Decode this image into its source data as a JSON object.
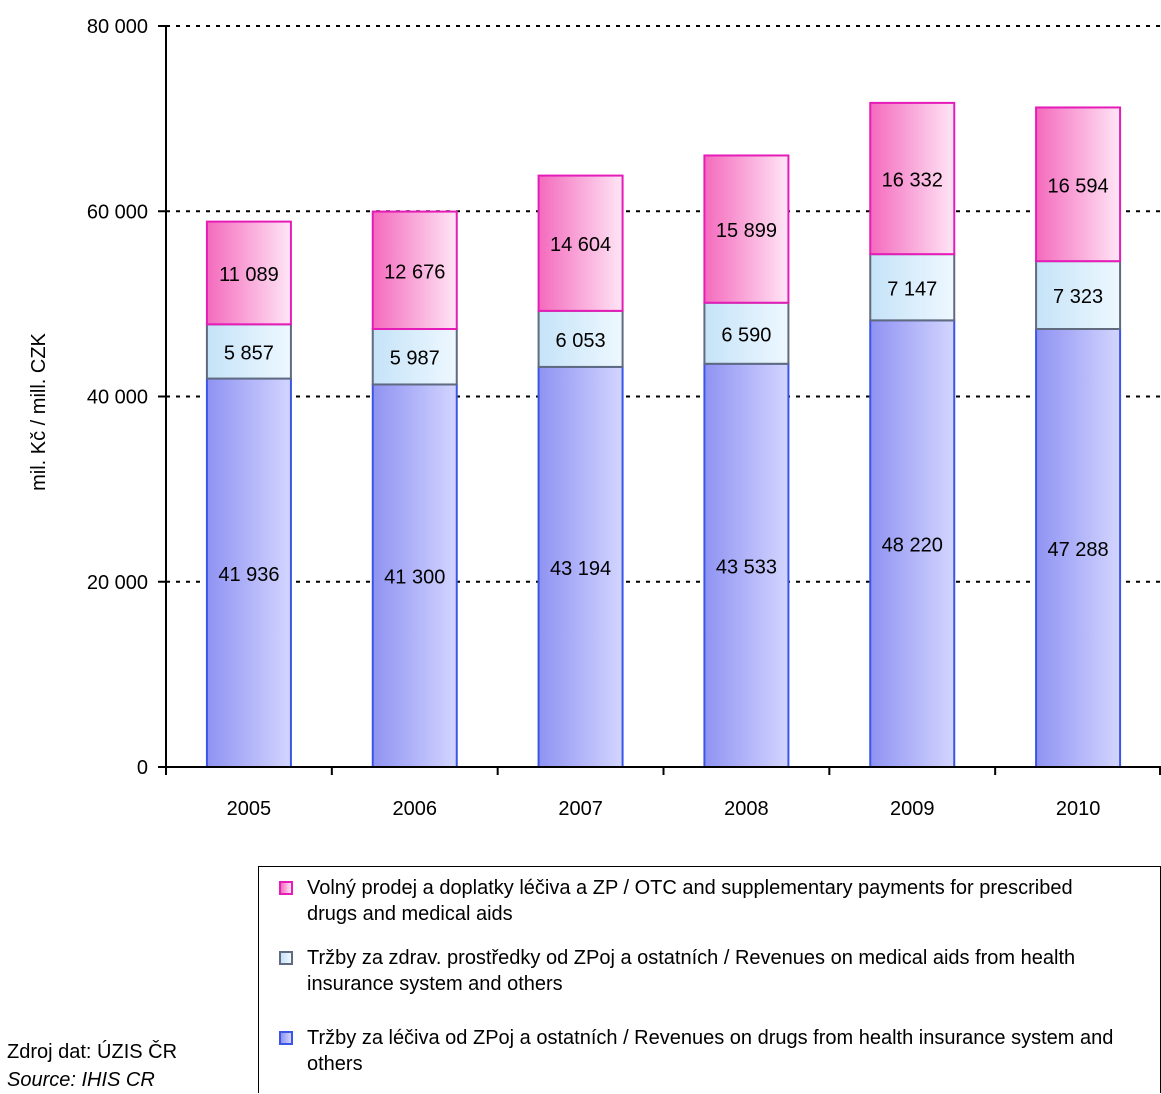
{
  "chart_data": {
    "type": "bar",
    "stacked": true,
    "categories": [
      "2005",
      "2006",
      "2007",
      "2008",
      "2009",
      "2010"
    ],
    "series": [
      {
        "name": "Tržby za léčiva od ZPoj a ostatních / Revenues on drugs from health insurance system and others",
        "values": [
          41936,
          41300,
          43194,
          43533,
          48220,
          47288
        ],
        "labels": [
          "41 936",
          "41 300",
          "43 194",
          "43 533",
          "48 220",
          "47 288"
        ],
        "color": "#9aa0f5",
        "border": "#3b55e6"
      },
      {
        "name": "Tržby za zdrav. prostředky od ZPoj a ostatních / Revenues on medical aids from health insurance system and others",
        "values": [
          5857,
          5987,
          6053,
          6590,
          7147,
          7323
        ],
        "labels": [
          "5 857",
          "5 987",
          "6 053",
          "6 590",
          "7 147",
          "7 323"
        ],
        "color": "#d6ecfb",
        "border": "#606b80"
      },
      {
        "name": "Volný prodej a doplatky léčiva a ZP / OTC and supplementary payments for prescribed drugs and medical aids",
        "values": [
          11089,
          12676,
          14604,
          15899,
          16332,
          16594
        ],
        "labels": [
          "11 089",
          "12 676",
          "14 604",
          "15 899",
          "16 332",
          "16 594"
        ],
        "color": "#f77fc4",
        "border": "#e51cb8"
      }
    ],
    "ylabel": "mil. Kč / mill. CZK",
    "ylim": [
      0,
      80000
    ],
    "yticks": [
      0,
      20000,
      40000,
      60000,
      80000
    ],
    "ytick_labels": [
      "0",
      "20 000",
      "40 000",
      "60 000",
      "80 000"
    ],
    "grid": true,
    "legend_position": "bottom-right",
    "legend_order": [
      2,
      1,
      0
    ]
  },
  "source": {
    "cz": "Zdroj dat: ÚZIS ČR",
    "en": "Source: IHIS CR"
  }
}
